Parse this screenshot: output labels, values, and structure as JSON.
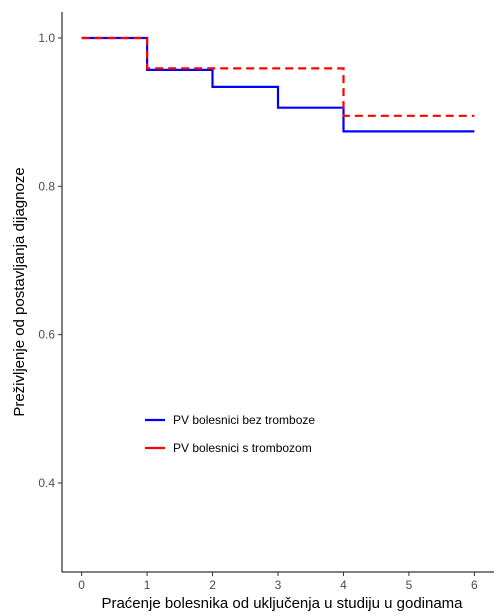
{
  "chart_data": {
    "type": "line",
    "step": true,
    "title": "",
    "xlabel": "Praćenje bolesnika od uključenja u studiju u godinama",
    "ylabel": "Preživljenje od postavljanja dijagnoze",
    "xlim": [
      -0.3,
      6.3
    ],
    "ylim": [
      0.28,
      1.035
    ],
    "xticks": [
      0,
      1,
      2,
      3,
      4,
      5,
      6
    ],
    "xtick_labels": [
      "0",
      "1",
      "2",
      "3",
      "4",
      "5",
      "6"
    ],
    "yticks": [
      0.4,
      0.6,
      0.8,
      1.0
    ],
    "ytick_labels": [
      "0.4",
      "0.6",
      "0.8",
      "1.0"
    ],
    "grid": false,
    "legend_position": "inside-left",
    "series": [
      {
        "name": "PV bolesnici bez tromboze",
        "color": "#0000ff",
        "dash": "solid",
        "x": [
          0,
          1,
          1,
          2,
          2,
          3,
          3,
          4,
          4,
          6
        ],
        "y": [
          1.0,
          1.0,
          0.957,
          0.957,
          0.934,
          0.934,
          0.906,
          0.906,
          0.874,
          0.874
        ]
      },
      {
        "name": "PV bolesnici s trombozom",
        "color": "#ff0000",
        "dash": "dashed",
        "x": [
          0,
          1,
          1,
          4,
          4,
          6
        ],
        "y": [
          1.0,
          1.0,
          0.959,
          0.959,
          0.895,
          0.895
        ]
      }
    ]
  }
}
